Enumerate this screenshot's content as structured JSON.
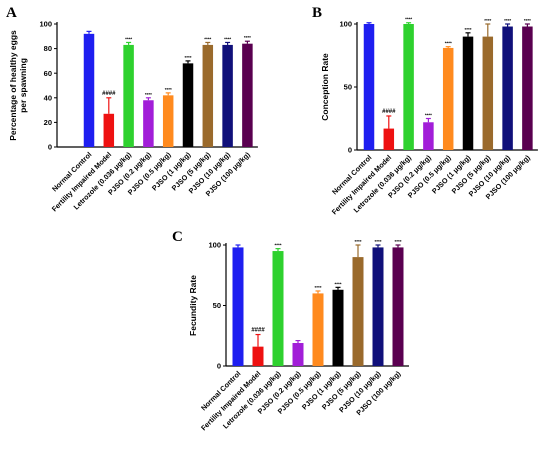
{
  "colors": [
    "#1e1ef0",
    "#ee1111",
    "#2ed12e",
    "#a21ed8",
    "#ff8a1e",
    "#000000",
    "#9a6a2c",
    "#10107a",
    "#5a0050"
  ],
  "chart_data": [
    {
      "panel": "A",
      "type": "bar",
      "ylabel": "Percentage of healthy eggs per spawning",
      "ylim": [
        0,
        100
      ],
      "yticks": [
        0,
        20,
        40,
        60,
        80,
        100
      ],
      "categories": [
        "Normal Control",
        "Fertility Impaired Model",
        "Letrozole (0.036 μg/kg)",
        "PJSO (0.2 μg/kg)",
        "PJSO (0.5 μg/kg)",
        "PJSO (1 μg/kg)",
        "PJSO (5 μg/kg)",
        "PJSO (10 μg/kg)",
        "PJSO (100 μg/kg)"
      ],
      "values": [
        92,
        27,
        83,
        38,
        42,
        68,
        83,
        83,
        84
      ],
      "errors": [
        2,
        13,
        2,
        2,
        2,
        2,
        2,
        2,
        2
      ],
      "annotations": [
        "",
        "####",
        "****",
        "****",
        "****",
        "****",
        "****",
        "****",
        "****"
      ]
    },
    {
      "panel": "B",
      "type": "bar",
      "ylabel": "Conception Rate",
      "ylim": [
        0,
        100
      ],
      "yticks": [
        0,
        50,
        100
      ],
      "categories": [
        "Normal Control",
        "Fertility Impaired Model",
        "Letrozole (0.036 μg/kg)",
        "PJSO (0.2 μg/kg)",
        "PJSO (0.5 μg/kg)",
        "PJSO (1 μg/kg)",
        "PJSO (5 μg/kg)",
        "PJSO (10 μg/kg)",
        "PJSO (100 μg/kg)"
      ],
      "values": [
        100,
        17,
        100,
        22,
        81,
        90,
        90,
        98,
        98
      ],
      "errors": [
        1,
        10,
        1,
        3,
        1,
        3,
        10,
        2,
        2
      ],
      "annotations": [
        "",
        "####",
        "****",
        "****",
        "****",
        "****",
        "****",
        "****",
        "****"
      ]
    },
    {
      "panel": "C",
      "type": "bar",
      "ylabel": "Fecundity Rate",
      "ylim": [
        0,
        100
      ],
      "yticks": [
        0,
        50,
        100
      ],
      "categories": [
        "Normal Control",
        "Fertility Impaired Model",
        "Letrozole (0.036 μg/kg)",
        "PJSO (0.2 μg/kg)",
        "PJSO (0.5 μg/kg)",
        "PJSO (1 μg/kg)",
        "PJSO (5 μg/kg)",
        "PJSO (10 μg/kg)",
        "PJSO (100 μg/kg)"
      ],
      "values": [
        98,
        16,
        95,
        19,
        60,
        63,
        90,
        98,
        98
      ],
      "errors": [
        2,
        10,
        2,
        2,
        2,
        2,
        10,
        2,
        2
      ],
      "annotations": [
        "",
        "####",
        "****",
        "",
        "****",
        "****",
        "****",
        "****",
        "****"
      ]
    }
  ]
}
